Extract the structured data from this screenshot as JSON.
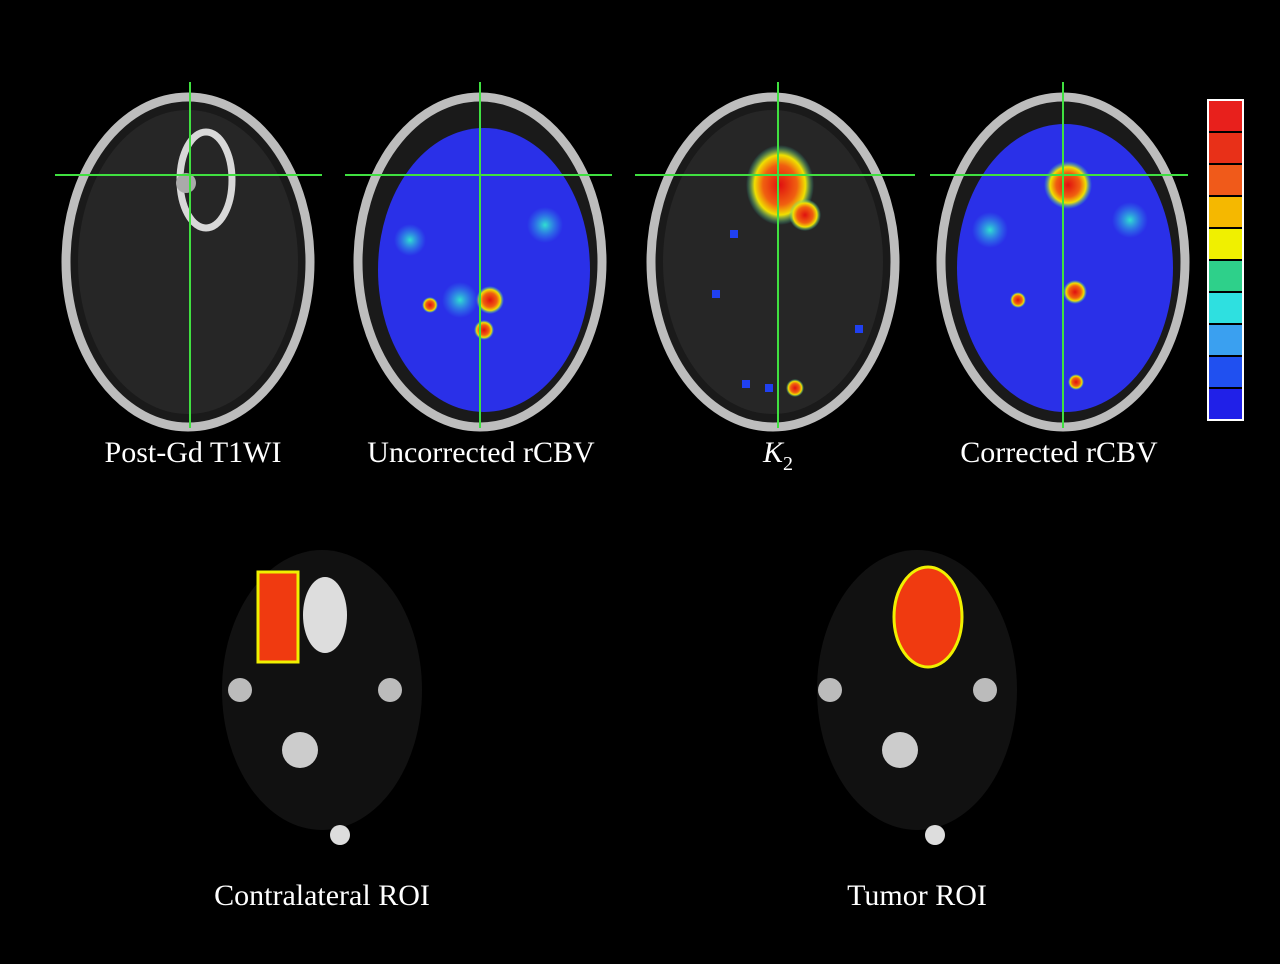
{
  "panels": [
    {
      "label": "Post-Gd T1WI"
    },
    {
      "label": "Uncorrected rCBV"
    },
    {
      "label": {
        "main": "K",
        "sub": "2"
      }
    },
    {
      "label": "Corrected rCBV"
    }
  ],
  "roi_panels": [
    {
      "label": "Contralateral ROI"
    },
    {
      "label": "Tumor ROI"
    }
  ]
}
